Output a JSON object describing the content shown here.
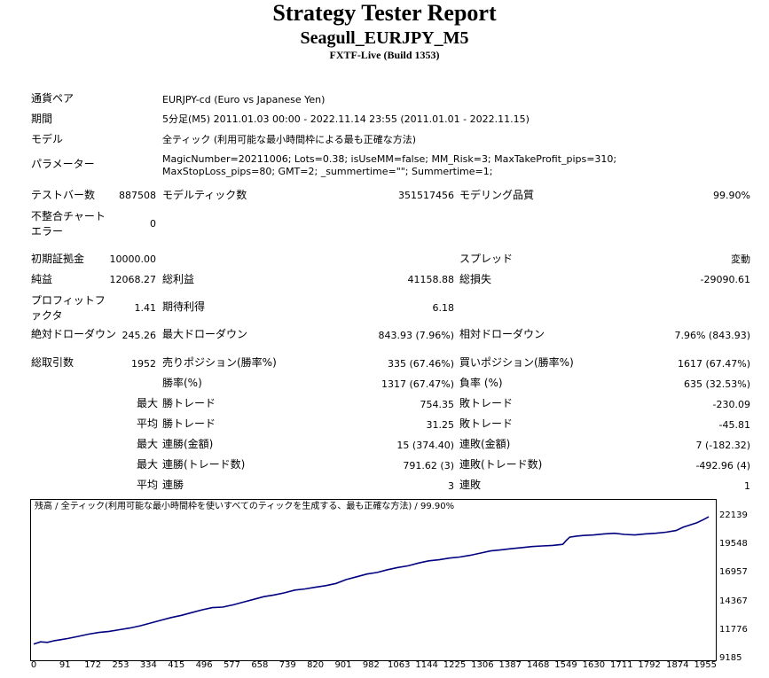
{
  "header": {
    "title": "Strategy Tester Report",
    "subtitle": "Seagull_EURJPY_M5",
    "server": "FXTF-Live (Build 1353)"
  },
  "info": {
    "symbol_label": "通貨ペア",
    "symbol_value": "EURJPY-cd (Euro vs Japanese Yen)",
    "period_label": "期間",
    "period_value": "5分足(M5) 2011.01.03 00:00 - 2022.11.14 23:55 (2011.01.01 - 2022.11.15)",
    "model_label": "モデル",
    "model_value": "全ティック (利用可能な最小時間枠による最も正確な方法)",
    "params_label": "パラメーター",
    "params_value": "MagicNumber=20211006; Lots=0.38; isUseMM=false; MM_Risk=3; MaxTakeProfit_pips=310; MaxStopLoss_pips=80; GMT=2; _summertime=\"\"; Summertime=1;"
  },
  "stats": {
    "bars_label": "テストバー数",
    "bars_value": "887508",
    "ticks_label": "モデルティック数",
    "ticks_value": "351517456",
    "quality_label": "モデリング品質",
    "quality_value": "99.90%",
    "mismatch_label": "不整合チャートエラー",
    "mismatch_value": "0",
    "deposit_label": "初期証拠金",
    "deposit_value": "10000.00",
    "spread_label": "スプレッド",
    "spread_value": "変動",
    "net_label": "純益",
    "net_value": "12068.27",
    "gross_profit_label": "総利益",
    "gross_profit_value": "41158.88",
    "gross_loss_label": "総損失",
    "gross_loss_value": "-29090.61",
    "pf_label": "プロフィットファクタ",
    "pf_value": "1.41",
    "expected_label": "期待利得",
    "expected_value": "6.18",
    "abs_dd_label": "絶対ドローダウン",
    "abs_dd_value": "245.26",
    "max_dd_label": "最大ドローダウン",
    "max_dd_value": "843.93 (7.96%)",
    "rel_dd_label": "相対ドローダウン",
    "rel_dd_value": "7.96% (843.93)",
    "trades_label": "総取引数",
    "trades_value": "1952",
    "short_label": "売りポジション(勝率%)",
    "short_value": "335 (67.46%)",
    "long_label": "買いポジション(勝率%)",
    "long_value": "1617 (67.47%)",
    "win_label": "勝率(%)",
    "win_value": "1317 (67.47%)",
    "loss_label": "負率 (%)",
    "loss_value": "635 (32.53%)",
    "largest_label": "最大",
    "largest_win_label": "勝トレード",
    "largest_win_value": "754.35",
    "largest_loss_label": "敗トレード",
    "largest_loss_value": "-230.09",
    "average_label": "平均",
    "average_win_label": "勝トレード",
    "average_win_value": "31.25",
    "average_loss_label": "敗トレード",
    "average_loss_value": "-45.81",
    "max_consec_label": "最大",
    "max_consec_win_label": "連勝(金額)",
    "max_consec_win_value": "15 (374.40)",
    "max_consec_loss_label": "連敗(金額)",
    "max_consec_loss_value": "7 (-182.32)",
    "max_consec2_label": "最大",
    "max_consec_profit_label": "連勝(トレード数)",
    "max_consec_profit_value": "791.62 (3)",
    "max_consec_loss2_label": "連敗(トレード数)",
    "max_consec_loss2_value": "-492.96 (4)",
    "avg_consec_label": "平均",
    "avg_consec_win_label": "連勝",
    "avg_consec_win_value": "3",
    "avg_consec_loss_label": "連敗",
    "avg_consec_loss_value": "1"
  },
  "chart_data": {
    "type": "line",
    "title": "残高 / 全ティック(利用可能な最小時間枠を使いすべてのティックを生成する、最も正確な方法) / 99.90%",
    "x_ticks": [
      0,
      91,
      172,
      253,
      334,
      415,
      496,
      577,
      658,
      739,
      820,
      901,
      982,
      1063,
      1144,
      1225,
      1306,
      1387,
      1468,
      1549,
      1630,
      1711,
      1792,
      1874,
      1955
    ],
    "y_ticks": [
      22139,
      19548,
      16957,
      14367,
      11776,
      9185
    ],
    "xlim": [
      0,
      1975
    ],
    "ylim": [
      9185,
      22800
    ],
    "line_color": "#000080",
    "series": [
      {
        "x": [
          0,
          20,
          40,
          60,
          80,
          100,
          130,
          160,
          190,
          220,
          250,
          280,
          310,
          340,
          370,
          400,
          430,
          460,
          490,
          520,
          550,
          580,
          610,
          640,
          670,
          700,
          730,
          760,
          790,
          820,
          850,
          880,
          910,
          940,
          970,
          1000,
          1030,
          1060,
          1090,
          1120,
          1150,
          1180,
          1210,
          1240,
          1270,
          1300,
          1330,
          1360,
          1390,
          1420,
          1450,
          1480,
          1510,
          1540,
          1550,
          1560,
          1580,
          1600,
          1630,
          1660,
          1690,
          1720,
          1750,
          1780,
          1810,
          1840,
          1870,
          1890,
          1910,
          1930,
          1950,
          1965
        ],
        "y": [
          10500,
          10700,
          10650,
          10800,
          10900,
          11000,
          11200,
          11400,
          11550,
          11650,
          11800,
          11950,
          12150,
          12400,
          12650,
          12900,
          13100,
          13350,
          13600,
          13800,
          13850,
          14050,
          14300,
          14550,
          14800,
          14950,
          15150,
          15400,
          15500,
          15650,
          15800,
          16000,
          16350,
          16600,
          16850,
          17000,
          17250,
          17450,
          17600,
          17850,
          18050,
          18150,
          18300,
          18400,
          18550,
          18750,
          18950,
          19050,
          19150,
          19250,
          19350,
          19400,
          19450,
          19550,
          19900,
          20200,
          20300,
          20350,
          20400,
          20500,
          20550,
          20450,
          20400,
          20500,
          20550,
          20650,
          20800,
          21100,
          21300,
          21500,
          21800,
          22050
        ]
      }
    ]
  }
}
